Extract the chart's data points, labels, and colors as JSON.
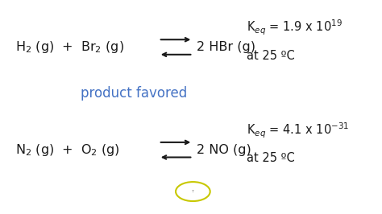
{
  "background_color": "#ffffff",
  "text_color": "#1a1a1a",
  "favored_color": "#4472C4",
  "favored_text": "product favored",
  "keq1_line1": "K$_{eq}$ = 1.9 x 10$^{19}$",
  "keq1_line2": "at 25 ºC",
  "keq2_line1": "K$_{eq}$ = 4.1 x 10$^{-31}$",
  "keq2_line2": "at 25 ºC",
  "eq1_left": "H$_2$ (g)  +  Br$_2$ (g)",
  "eq1_right": "2 HBr (g)",
  "eq2_left": "N$_2$ (g)  +  O$_2$ (g)",
  "eq2_right": "2 NO (g)",
  "font_size_eq": 11.5,
  "font_size_keq": 10.5,
  "font_size_favored": 12,
  "circle_color": "#c8c800"
}
